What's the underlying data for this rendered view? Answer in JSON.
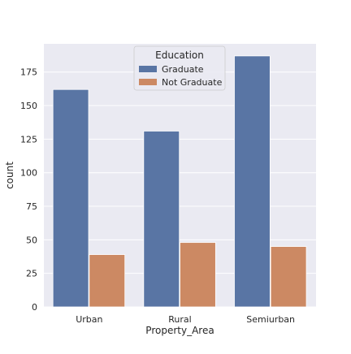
{
  "chart_data": {
    "type": "bar",
    "title": "",
    "xlabel": "Property_Area",
    "ylabel": "count",
    "categories": [
      "Urban",
      "Rural",
      "Semiurban"
    ],
    "series": [
      {
        "name": "Graduate",
        "values": [
          162,
          131,
          187
        ],
        "color": "#5975a4"
      },
      {
        "name": "Not Graduate",
        "values": [
          39,
          48,
          45
        ],
        "color": "#cc8963"
      }
    ],
    "ylim": [
      0,
      196
    ],
    "yticks": [
      0,
      25,
      50,
      75,
      100,
      125,
      150,
      175
    ],
    "legend": {
      "title": "Education",
      "placement": "top-center"
    },
    "grid": true,
    "plot_background": "#eaeaf2",
    "grid_color": "#ffffff"
  }
}
